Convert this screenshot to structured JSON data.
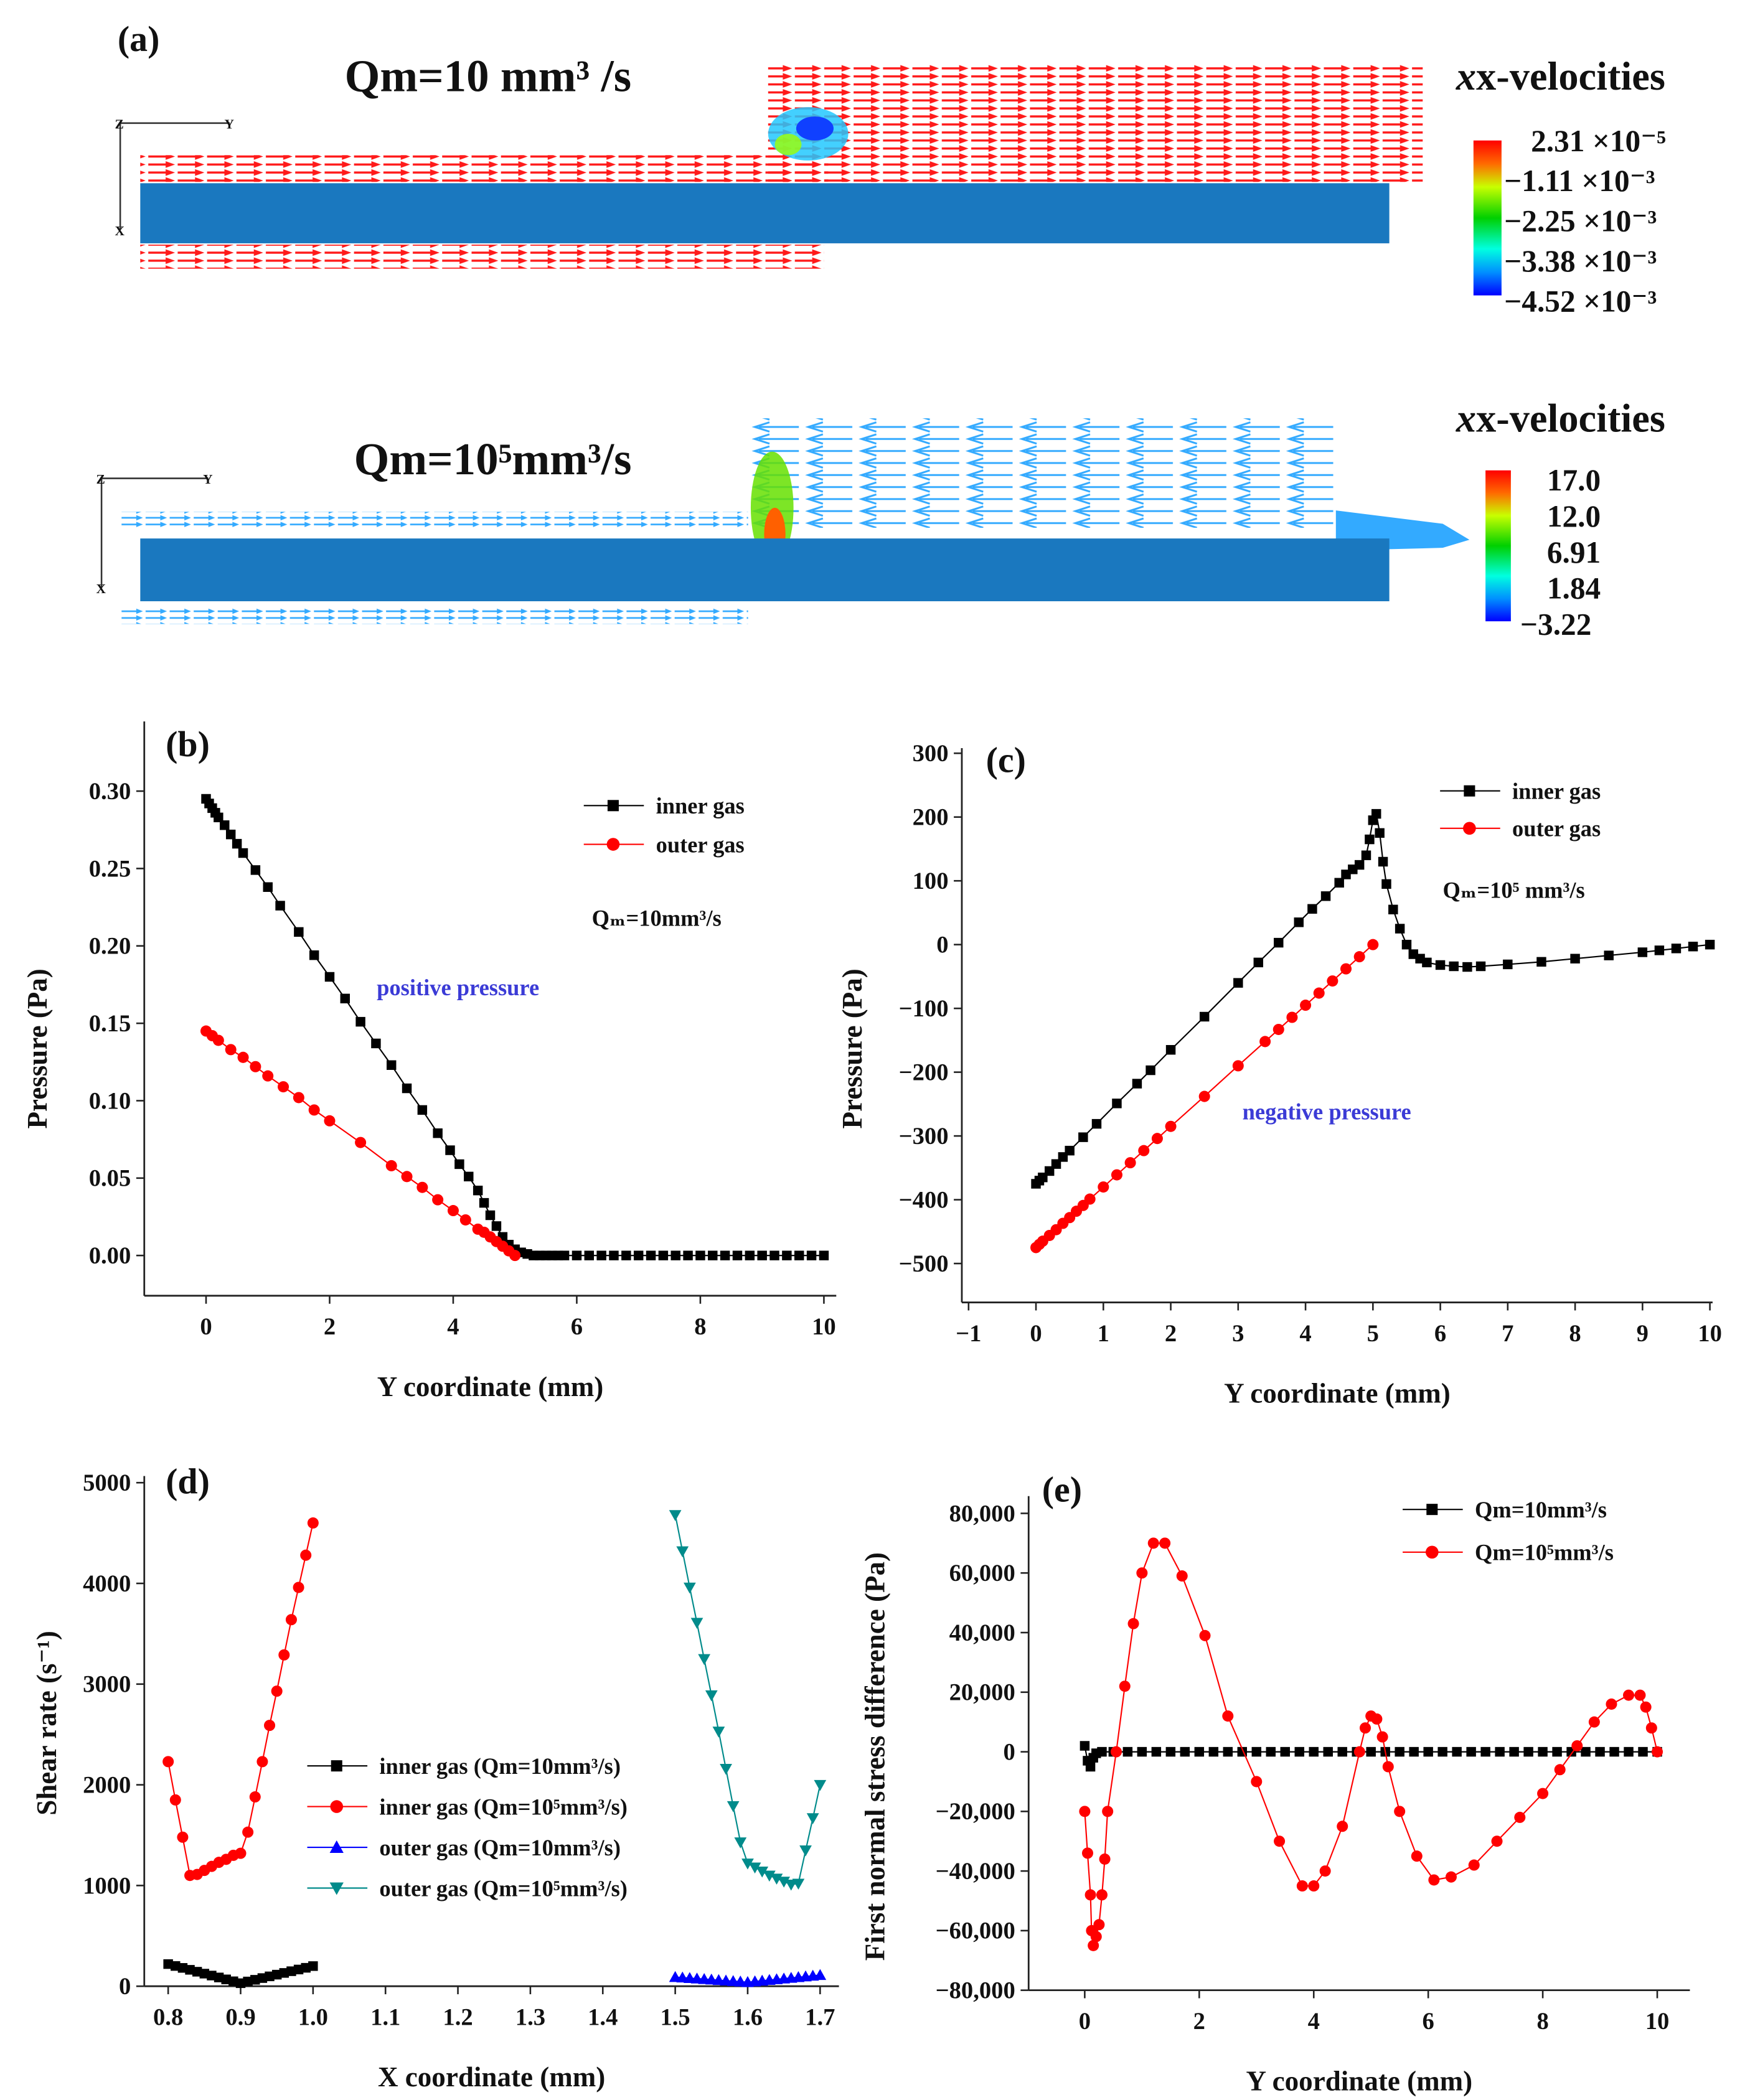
{
  "panel_a": {
    "label": "(a)",
    "top": {
      "title": "Qm=10 mm³ /s",
      "legend_title": "x-velocities",
      "colorbar_labels": [
        "2.31 ×10⁻⁵",
        "−1.11 ×10⁻³",
        "−2.25 ×10⁻³",
        "−3.38 ×10⁻³",
        "−4.52 ×10⁻³"
      ],
      "axis_letters": [
        "Z",
        "Y",
        "X"
      ]
    },
    "bottom": {
      "title": "Qm=10⁵mm³/s",
      "legend_title": "x-velocities",
      "colorbar_labels": [
        "17.0",
        "12.0",
        "6.91",
        "1.84",
        "−3.22"
      ],
      "axis_letters": [
        "Z",
        "Y",
        "X"
      ]
    },
    "colors": {
      "solid": "#1a78bf",
      "arrow_top": "#ff1a1a",
      "arrow_bottom": "#33aaff"
    }
  },
  "chart_data": [
    {
      "id": "b",
      "type": "line",
      "panel_label": "(b)",
      "xlabel": "Y coordinate (mm)",
      "ylabel": "Pressure (Pa)",
      "xlim": [
        -1,
        10.2
      ],
      "ylim": [
        -0.026,
        0.345
      ],
      "xticks": [
        0,
        2,
        4,
        6,
        8,
        10
      ],
      "xtick_labels": [
        "0",
        "2",
        "4",
        "6",
        "8",
        "10"
      ],
      "yticks": [
        0,
        0.05,
        0.1,
        0.15,
        0.2,
        0.25,
        0.3
      ],
      "ytick_labels": [
        "0.00",
        "0.05",
        "0.10",
        "0.15",
        "0.20",
        "0.25",
        "0.30"
      ],
      "legend": "top-right",
      "annotations": [
        "Qₘ=10mm³/s",
        "positive pressure"
      ],
      "annotation_color": "#3b3bd6",
      "series": [
        {
          "name": "inner gas",
          "color": "#000000",
          "marker": "square",
          "x": [
            0,
            0.05,
            0.1,
            0.15,
            0.2,
            0.3,
            0.4,
            0.5,
            0.6,
            0.8,
            1.0,
            1.2,
            1.5,
            1.75,
            2.0,
            2.25,
            2.5,
            2.75,
            3.0,
            3.25,
            3.5,
            3.75,
            3.95,
            4.1,
            4.25,
            4.4,
            4.5,
            4.6,
            4.7,
            4.8,
            4.9,
            5.0,
            5.1,
            5.2,
            5.3,
            5.4,
            5.5,
            5.6,
            5.7,
            5.8,
            6.0,
            6.2,
            6.4,
            6.6,
            6.8,
            7.0,
            7.2,
            7.4,
            7.6,
            7.8,
            8.0,
            8.2,
            8.4,
            8.6,
            8.8,
            9.0,
            9.2,
            9.4,
            9.6,
            9.8,
            10.0
          ],
          "y": [
            0.295,
            0.292,
            0.289,
            0.286,
            0.283,
            0.278,
            0.272,
            0.266,
            0.26,
            0.249,
            0.238,
            0.226,
            0.209,
            0.194,
            0.18,
            0.166,
            0.151,
            0.137,
            0.123,
            0.108,
            0.094,
            0.079,
            0.068,
            0.059,
            0.051,
            0.042,
            0.034,
            0.026,
            0.019,
            0.012,
            0.007,
            0.004,
            0.002,
            0.001,
            0,
            0,
            0,
            0,
            0,
            0,
            0,
            0,
            0,
            0,
            0,
            0,
            0,
            0,
            0,
            0,
            0,
            0,
            0,
            0,
            0,
            0,
            0,
            0,
            0,
            0,
            0
          ]
        },
        {
          "name": "outer gas",
          "color": "#ff0000",
          "marker": "circle",
          "x": [
            0,
            0.1,
            0.2,
            0.4,
            0.6,
            0.8,
            1.0,
            1.25,
            1.5,
            1.75,
            2.0,
            2.5,
            3.0,
            3.25,
            3.5,
            3.75,
            4.0,
            4.2,
            4.4,
            4.5,
            4.6,
            4.7,
            4.8,
            4.9,
            5.0
          ],
          "y": [
            0.145,
            0.142,
            0.139,
            0.133,
            0.128,
            0.122,
            0.116,
            0.109,
            0.102,
            0.094,
            0.087,
            0.073,
            0.058,
            0.051,
            0.044,
            0.036,
            0.029,
            0.023,
            0.017,
            0.015,
            0.012,
            0.009,
            0.006,
            0.003,
            0.0
          ]
        }
      ]
    },
    {
      "id": "c",
      "type": "line",
      "panel_label": "(c)",
      "xlabel": "Y coordinate (mm)",
      "ylabel": "Pressure (Pa)",
      "xlim": [
        -1.1,
        10.04
      ],
      "ylim": [
        -561,
        308
      ],
      "xticks": [
        -1,
        0,
        1,
        2,
        3,
        4,
        5,
        6,
        7,
        8,
        9,
        10
      ],
      "xtick_labels": [
        "−1",
        "0",
        "1",
        "2",
        "3",
        "4",
        "5",
        "6",
        "7",
        "8",
        "9",
        "10"
      ],
      "yticks": [
        -500,
        -400,
        -300,
        -200,
        -100,
        0,
        100,
        200,
        300
      ],
      "ytick_labels": [
        "−500",
        "−400",
        "−300",
        "−200",
        "−100",
        "0",
        "100",
        "200",
        "300"
      ],
      "legend": "top-right",
      "annotations": [
        "Qₘ=10⁵ mm³/s",
        "negative pressure"
      ],
      "annotation_color": "#3b3bd6",
      "series": [
        {
          "name": "inner gas",
          "color": "#000000",
          "marker": "square",
          "x": [
            0,
            0.05,
            0.1,
            0.2,
            0.3,
            0.4,
            0.5,
            0.7,
            0.9,
            1.2,
            1.5,
            1.7,
            2.0,
            2.5,
            3.0,
            3.3,
            3.6,
            3.9,
            4.1,
            4.3,
            4.5,
            4.6,
            4.7,
            4.8,
            4.9,
            4.95,
            5.0,
            5.05,
            5.1,
            5.15,
            5.2,
            5.3,
            5.4,
            5.5,
            5.6,
            5.7,
            5.8,
            6.0,
            6.2,
            6.4,
            6.6,
            7.0,
            7.5,
            8.0,
            8.5,
            9.0,
            9.25,
            9.5,
            9.75,
            10.0
          ],
          "y": [
            -375,
            -370,
            -365,
            -355,
            -344,
            -333,
            -323,
            -302,
            -281,
            -249,
            -218,
            -197,
            -165,
            -113,
            -60,
            -28,
            3,
            35,
            56,
            76,
            97,
            110,
            118,
            125,
            140,
            165,
            195,
            205,
            175,
            130,
            95,
            55,
            25,
            0,
            -15,
            -22,
            -28,
            -32,
            -34,
            -35,
            -34,
            -31,
            -27,
            -22,
            -17,
            -12,
            -9,
            -6,
            -3,
            0
          ]
        },
        {
          "name": "outer gas",
          "color": "#ff0000",
          "marker": "circle",
          "x": [
            0,
            0.05,
            0.1,
            0.2,
            0.3,
            0.4,
            0.5,
            0.6,
            0.7,
            0.8,
            1.0,
            1.2,
            1.4,
            1.6,
            1.8,
            2.0,
            2.5,
            3.0,
            3.4,
            3.6,
            3.8,
            4.0,
            4.2,
            4.4,
            4.6,
            4.8,
            5.0
          ],
          "y": [
            -475,
            -470,
            -465,
            -456,
            -447,
            -437,
            -428,
            -418,
            -409,
            -399,
            -380,
            -361,
            -342,
            -323,
            -304,
            -285,
            -238,
            -190,
            -152,
            -133,
            -114,
            -95,
            -76,
            -57,
            -38,
            -19,
            0
          ]
        }
      ]
    },
    {
      "id": "d",
      "type": "line",
      "panel_label": "(d)",
      "xlabel": "X coordinate (mm)",
      "ylabel": "Shear rate  (s⁻¹)",
      "ylabel_color": "#1a1a1a",
      "xlim": [
        0.767,
        1.726
      ],
      "ylim": [
        0,
        5066
      ],
      "xticks": [
        0.8,
        0.9,
        1.0,
        1.1,
        1.2,
        1.3,
        1.4,
        1.5,
        1.6,
        1.7
      ],
      "xtick_labels": [
        "0.8",
        "0.9",
        "1.0",
        "1.1",
        "1.2",
        "1.3",
        "1.4",
        "1.5",
        "1.6",
        "1.7"
      ],
      "yticks": [
        0,
        1000,
        2000,
        3000,
        4000,
        5000
      ],
      "ytick_labels": [
        "0",
        "1000",
        "2000",
        "3000",
        "4000",
        "5000"
      ],
      "legend": "center",
      "annotations": [],
      "series": [
        {
          "name": "inner gas (Qm=10mm³/s)",
          "color": "#000000",
          "marker": "square",
          "x": [
            0.8,
            0.81,
            0.82,
            0.83,
            0.84,
            0.85,
            0.86,
            0.87,
            0.88,
            0.89,
            0.9,
            0.91,
            0.92,
            0.93,
            0.94,
            0.95,
            0.96,
            0.97,
            0.98,
            0.99,
            1.0
          ],
          "y": [
            220,
            201,
            182,
            163,
            144,
            125,
            106,
            87,
            68,
            49,
            30,
            47,
            64,
            81,
            98,
            115,
            132,
            149,
            166,
            183,
            200
          ]
        },
        {
          "name": "inner gas (Qm=10⁵mm³/s)",
          "color": "#ff0000",
          "marker": "circle",
          "x": [
            0.8,
            0.81,
            0.82,
            0.83,
            0.84,
            0.85,
            0.86,
            0.87,
            0.88,
            0.89,
            0.9,
            0.91,
            0.92,
            0.93,
            0.94,
            0.95,
            0.96,
            0.97,
            0.98,
            0.99,
            1.0
          ],
          "y": [
            2230,
            1850,
            1480,
            1100,
            1110,
            1150,
            1190,
            1230,
            1260,
            1300,
            1320,
            1530,
            1880,
            2230,
            2590,
            2930,
            3290,
            3640,
            3960,
            4280,
            4600
          ]
        },
        {
          "name": "outer gas (Qm=10mm³/s)",
          "color": "#0000ff",
          "marker": "triangle-up",
          "x": [
            1.5,
            1.51,
            1.52,
            1.53,
            1.54,
            1.55,
            1.56,
            1.57,
            1.58,
            1.59,
            1.6,
            1.61,
            1.62,
            1.63,
            1.64,
            1.65,
            1.66,
            1.67,
            1.68,
            1.69,
            1.7
          ],
          "y": [
            90,
            85,
            80,
            75,
            70,
            65,
            60,
            55,
            50,
            45,
            40,
            47,
            54,
            61,
            68,
            75,
            82,
            89,
            96,
            103,
            110
          ]
        },
        {
          "name": "outer gas (Qm=10⁵mm³/s)",
          "color": "#008b8b",
          "marker": "triangle-down",
          "x": [
            1.5,
            1.51,
            1.52,
            1.53,
            1.54,
            1.55,
            1.56,
            1.57,
            1.58,
            1.59,
            1.6,
            1.61,
            1.62,
            1.63,
            1.64,
            1.65,
            1.66,
            1.67,
            1.68,
            1.69,
            1.7
          ],
          "y": [
            4680,
            4320,
            3960,
            3610,
            3250,
            2890,
            2530,
            2160,
            1790,
            1430,
            1220,
            1180,
            1140,
            1100,
            1070,
            1040,
            1010,
            1020,
            1350,
            1670,
            2000
          ]
        }
      ]
    },
    {
      "id": "e",
      "type": "line",
      "panel_label": "(e)",
      "xlabel": "Y coordinate (mm)",
      "ylabel": "First normal stress difference (Pa)",
      "xlim": [
        -0.98,
        10.57
      ],
      "ylim": [
        -80000,
        85800
      ],
      "xticks": [
        0,
        2,
        4,
        6,
        8,
        10
      ],
      "xtick_labels": [
        "0",
        "2",
        "4",
        "6",
        "8",
        "10"
      ],
      "yticks": [
        -80000,
        -60000,
        -40000,
        -20000,
        0,
        20000,
        40000,
        60000,
        80000
      ],
      "ytick_labels": [
        "−80,000",
        "−60,000",
        "−40,000",
        "−20,000",
        "0",
        "20,000",
        "40,000",
        "60,000",
        "80,000"
      ],
      "legend": "top-right",
      "annotations": [],
      "series": [
        {
          "name": "Qm=10mm³/s",
          "color": "#000000",
          "marker": "square",
          "x": [
            0,
            0.05,
            0.1,
            0.15,
            0.2,
            0.3,
            0.5,
            0.75,
            1.0,
            1.25,
            1.5,
            1.75,
            2.0,
            2.25,
            2.5,
            2.75,
            3.0,
            3.25,
            3.5,
            3.75,
            4.0,
            4.25,
            4.5,
            4.75,
            5.0,
            5.25,
            5.5,
            5.75,
            6.0,
            6.25,
            6.5,
            6.75,
            7.0,
            7.25,
            7.5,
            7.75,
            8.0,
            8.25,
            8.5,
            8.75,
            9.0,
            9.25,
            9.5,
            9.75,
            10.0
          ],
          "y": [
            2000,
            -3000,
            -5000,
            -2000,
            -500,
            0,
            0,
            0,
            0,
            0,
            0,
            0,
            0,
            0,
            0,
            0,
            0,
            0,
            0,
            0,
            0,
            0,
            0,
            0,
            0,
            0,
            0,
            0,
            0,
            0,
            0,
            0,
            0,
            0,
            0,
            0,
            0,
            0,
            0,
            0,
            0,
            0,
            0,
            0,
            0
          ]
        },
        {
          "name": "Qm=10⁵mm³/s",
          "color": "#ff0000",
          "marker": "circle",
          "x": [
            0,
            0.05,
            0.1,
            0.12,
            0.15,
            0.2,
            0.25,
            0.3,
            0.35,
            0.4,
            0.55,
            0.7,
            0.85,
            1.0,
            1.2,
            1.4,
            1.7,
            2.1,
            2.5,
            3.0,
            3.4,
            3.8,
            4.0,
            4.2,
            4.5,
            4.8,
            4.9,
            5.0,
            5.1,
            5.2,
            5.3,
            5.5,
            5.8,
            6.1,
            6.4,
            6.8,
            7.2,
            7.6,
            8.0,
            8.3,
            8.6,
            8.9,
            9.2,
            9.5,
            9.7,
            9.8,
            9.9,
            10.0
          ],
          "y": [
            -20000,
            -34000,
            -48000,
            -60000,
            -65000,
            -62000,
            -58000,
            -48000,
            -36000,
            -20000,
            0,
            22000,
            43000,
            60000,
            70000,
            70000,
            59000,
            39000,
            12000,
            -10000,
            -30000,
            -45000,
            -45000,
            -40000,
            -25000,
            0,
            8000,
            12000,
            11000,
            5000,
            -5000,
            -20000,
            -35000,
            -43000,
            -42000,
            -38000,
            -30000,
            -22000,
            -14000,
            -6000,
            2000,
            10000,
            16000,
            19000,
            19000,
            15000,
            8000,
            0
          ]
        }
      ]
    }
  ]
}
